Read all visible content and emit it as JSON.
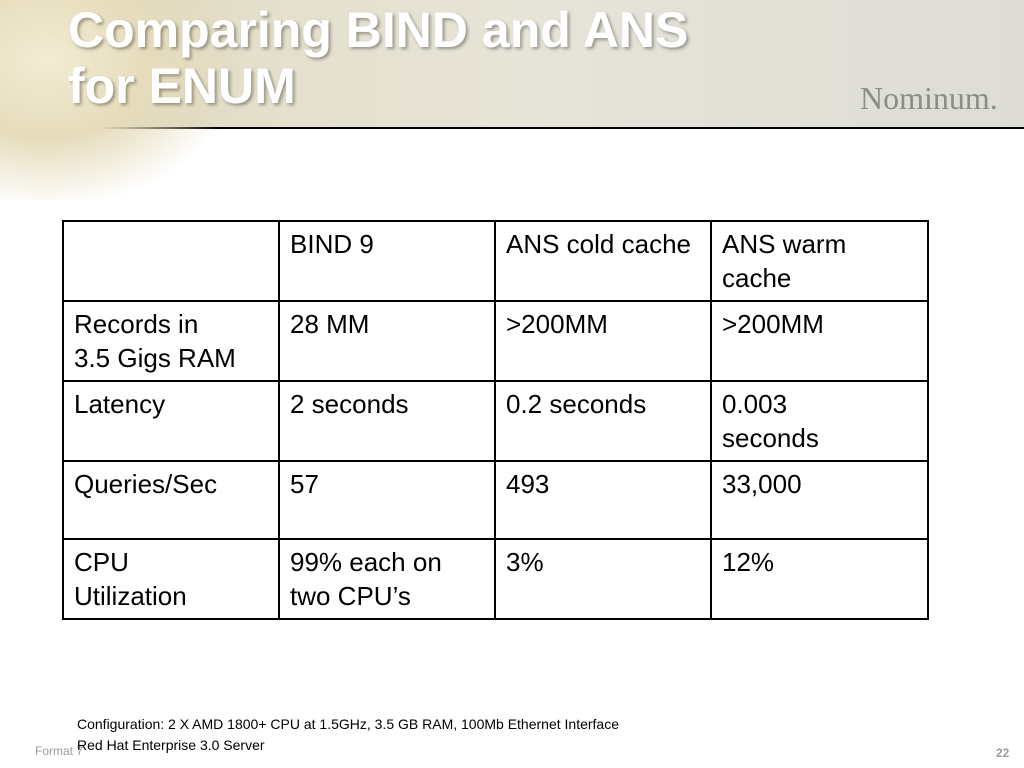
{
  "header": {
    "title": "Comparing BIND and ANS\nfor ENUM",
    "logo": "Nominum."
  },
  "table": {
    "columns": [
      "",
      "BIND 9",
      "ANS cold cache",
      "ANS warm cache"
    ],
    "rows": [
      [
        "Records in\n3.5 Gigs RAM",
        "28 MM",
        ">200MM",
        ">200MM"
      ],
      [
        "Latency",
        "2 seconds",
        "0.2 seconds",
        "0.003\nseconds"
      ],
      [
        "Queries/Sec",
        "57",
        "493",
        "33,000"
      ],
      [
        "CPU\nUtilization",
        "99% each on\ntwo CPU’s",
        "3%",
        "12%"
      ]
    ]
  },
  "footnote": [
    "Configuration: 2 X AMD 1800+ CPU at 1.5GHz, 3.5 GB RAM, 100Mb Ethernet Interface",
    "Red Hat Enterprise 3.0 Server"
  ],
  "footer": {
    "label": "Format 7",
    "page": "22"
  }
}
